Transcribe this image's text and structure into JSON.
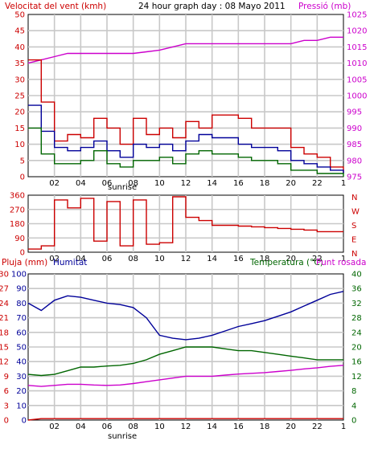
{
  "colors": {
    "wind": "#cc0000",
    "pressure": "#cc00cc",
    "humidity": "#000099",
    "temperature": "#006600",
    "dewpoint": "#cc00cc",
    "rain": "#cc0000",
    "grid": "#c8c8c8",
    "axis_text": "#cc0000"
  },
  "chart_data": [
    {
      "type": "line",
      "title": "24 hour graph day : 08 Mayo 2011",
      "left_label": "Velocitat del vent (kmh)",
      "right_label": "Pressió (mb)",
      "x_ticks": [
        "02",
        "04",
        "06",
        "08",
        "10",
        "12",
        "14",
        "16",
        "18",
        "20",
        "22",
        "1"
      ],
      "x_annotation": "sunrise",
      "y_left_ticks": [
        "0",
        "5",
        "10",
        "15",
        "20",
        "25",
        "30",
        "35",
        "40",
        "45",
        "50"
      ],
      "y_right_ticks": [
        "975",
        "980",
        "985",
        "990",
        "995",
        "1000",
        "1005",
        "1010",
        "1015",
        "1020",
        "1025"
      ],
      "ylim_left": [
        0,
        50
      ],
      "ylim_right": [
        975,
        1025
      ],
      "x": [
        0,
        1,
        2,
        3,
        4,
        5,
        6,
        7,
        8,
        9,
        10,
        11,
        12,
        13,
        14,
        15,
        16,
        17,
        18,
        19,
        20,
        21,
        22,
        23,
        24
      ],
      "series": [
        {
          "axis": "right",
          "color_key": "pressure",
          "values": [
            1010,
            1011,
            1012,
            1013,
            1013,
            1013,
            1013,
            1013,
            1013,
            1013.5,
            1014,
            1015,
            1016,
            1016,
            1016,
            1016,
            1016,
            1016,
            1016,
            1016,
            1016,
            1017,
            1017,
            1018,
            1018
          ]
        },
        {
          "axis": "left",
          "color_key": "wind",
          "values": [
            36,
            23,
            11,
            13,
            12,
            18,
            15,
            10,
            18,
            13,
            15,
            12,
            17,
            15,
            19,
            19,
            18,
            15,
            15,
            15,
            9,
            7,
            6,
            3,
            1
          ]
        },
        {
          "axis": "left",
          "color_key": "humidity",
          "values": [
            22,
            14,
            9,
            8,
            9,
            11,
            8,
            6,
            10,
            9,
            10,
            8,
            11,
            13,
            12,
            12,
            10,
            9,
            9,
            8,
            5,
            4,
            3,
            2,
            1
          ]
        },
        {
          "axis": "left",
          "color_key": "temperature",
          "values": [
            15,
            7,
            4,
            4,
            5,
            8,
            4,
            3,
            5,
            5,
            6,
            4,
            7,
            8,
            7,
            7,
            6,
            5,
            5,
            4,
            2,
            2,
            1,
            1,
            0
          ]
        }
      ]
    },
    {
      "type": "line",
      "right_label": "N W S E N",
      "x_ticks": [
        "02",
        "04",
        "06",
        "08",
        "10",
        "12",
        "14",
        "16",
        "18",
        "20",
        "22",
        "1"
      ],
      "y_ticks": [
        "0",
        "90",
        "180",
        "270",
        "360"
      ],
      "ylim": [
        0,
        360
      ],
      "x": [
        0,
        1,
        2,
        3,
        4,
        5,
        6,
        7,
        8,
        9,
        10,
        11,
        12,
        13,
        14,
        15,
        16,
        17,
        18,
        19,
        20,
        21,
        22,
        23,
        24
      ],
      "series": [
        {
          "color_key": "wind",
          "values": [
            20,
            40,
            330,
            280,
            340,
            70,
            320,
            40,
            330,
            50,
            60,
            350,
            220,
            200,
            170,
            170,
            165,
            160,
            155,
            150,
            145,
            140,
            130,
            130,
            130
          ]
        }
      ]
    },
    {
      "type": "line",
      "x_ticks": [
        "02",
        "04",
        "06",
        "08",
        "10",
        "12",
        "14",
        "16",
        "18",
        "20",
        "22",
        "1"
      ],
      "x_annotation": "sunrise",
      "label_rain": "Pluja (mm)",
      "label_humidity": "Humitat",
      "label_temperature": "Temperatura (°C)",
      "label_dewpoint": "Punt rosada",
      "y_rain_ticks": [
        "0",
        "3",
        "6",
        "9",
        "12",
        "15",
        "18",
        "21",
        "24",
        "27",
        "30"
      ],
      "y_humidity_ticks": [
        "0",
        "10",
        "20",
        "30",
        "40",
        "50",
        "60",
        "70",
        "80",
        "90",
        "100"
      ],
      "y_temp_ticks": [
        "0",
        "4",
        "8",
        "12",
        "16",
        "20",
        "24",
        "28",
        "32",
        "36",
        "40"
      ],
      "ylim_rain": [
        0,
        30
      ],
      "ylim_humidity": [
        0,
        100
      ],
      "ylim_temp": [
        0,
        40
      ],
      "x": [
        0,
        1,
        2,
        3,
        4,
        5,
        6,
        7,
        8,
        9,
        10,
        11,
        12,
        13,
        14,
        15,
        16,
        17,
        18,
        19,
        20,
        21,
        22,
        23,
        24
      ],
      "series": [
        {
          "axis": "humidity",
          "color_key": "humidity",
          "values": [
            80,
            75,
            82,
            85,
            84,
            82,
            80,
            79,
            77,
            70,
            58,
            56,
            55,
            56,
            58,
            61,
            64,
            66,
            68,
            71,
            74,
            78,
            82,
            86,
            88
          ]
        },
        {
          "axis": "temp",
          "color_key": "temperature",
          "values": [
            12.5,
            12.2,
            12.5,
            13.5,
            14.5,
            14.5,
            14.8,
            15,
            15.5,
            16.5,
            18,
            19,
            20,
            20,
            20,
            19.5,
            19,
            19,
            18.5,
            18,
            17.5,
            17,
            16.5,
            16.5,
            16.5
          ]
        },
        {
          "axis": "temp",
          "color_key": "dewpoint",
          "values": [
            9.5,
            9.2,
            9.5,
            9.8,
            9.8,
            9.6,
            9.5,
            9.6,
            10,
            10.5,
            11,
            11.5,
            12,
            12,
            12,
            12.3,
            12.6,
            12.8,
            13,
            13.3,
            13.6,
            14,
            14.3,
            14.7,
            15
          ]
        },
        {
          "axis": "rain",
          "color_key": "rain",
          "values": [
            0,
            0.3,
            0.3,
            0.3,
            0.3,
            0.3,
            0.3,
            0.3,
            0.3,
            0.3,
            0.3,
            0.3,
            0.3,
            0.3,
            0.3,
            0.3,
            0.3,
            0.3,
            0.3,
            0.3,
            0.3,
            0.3,
            0.3,
            0.3,
            0.3
          ]
        }
      ]
    }
  ]
}
